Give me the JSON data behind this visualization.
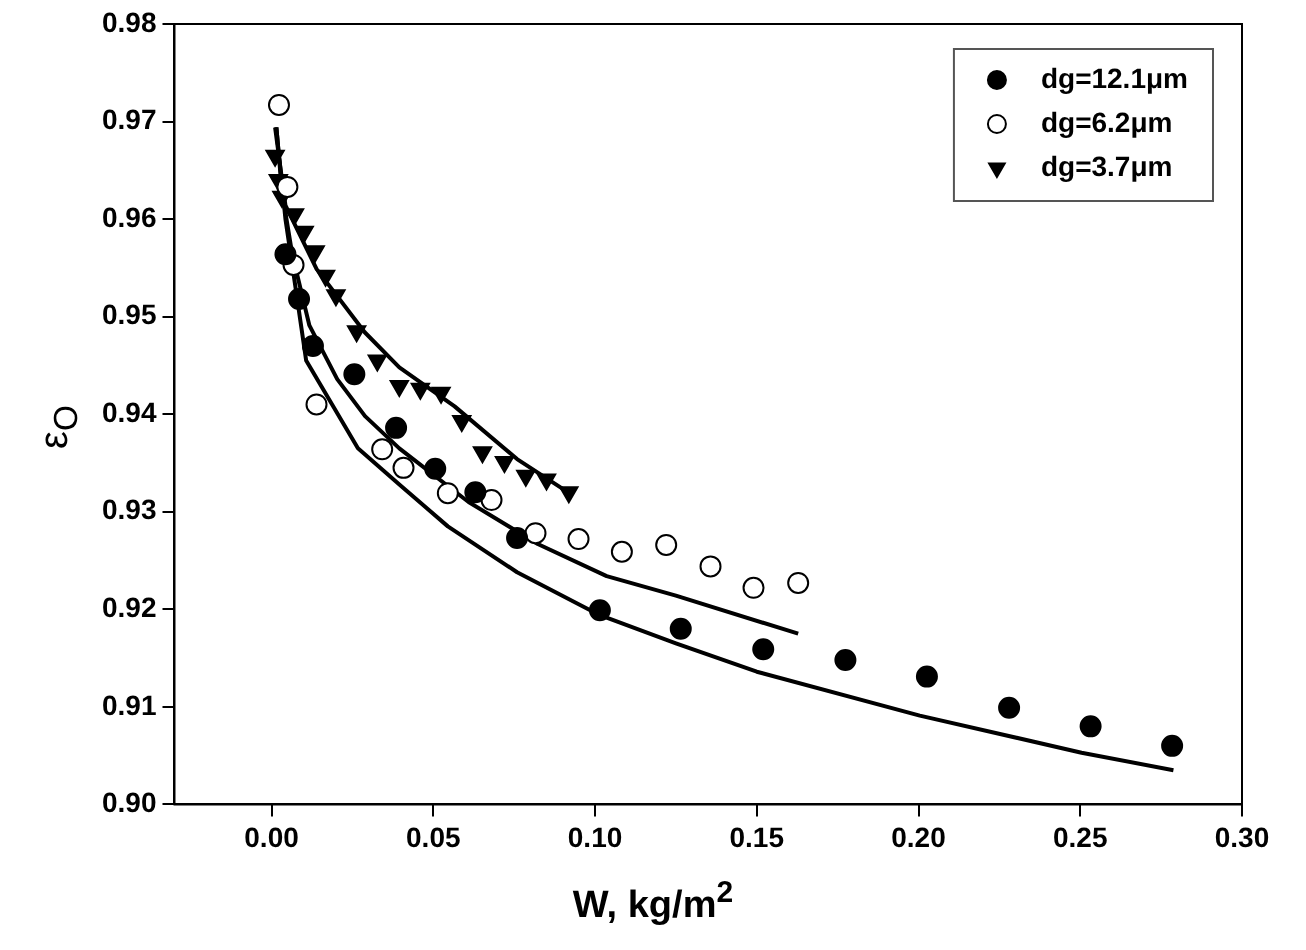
{
  "chart_data": {
    "type": "scatter",
    "xlabel": "W, kg/m$^{2}$",
    "ylabel": "ε$_{O}$",
    "xlim": [
      -0.03,
      0.3
    ],
    "ylim": [
      0.9,
      0.98
    ],
    "xticks": [
      {
        "value": 0,
        "label": "0.00"
      },
      {
        "value": 0.05,
        "label": "0.05"
      },
      {
        "value": 0.1,
        "label": "0.10"
      },
      {
        "value": 0.15,
        "label": "0.15"
      },
      {
        "value": 0.2,
        "label": "0.20"
      },
      {
        "value": 0.25,
        "label": "0.25"
      },
      {
        "value": 0.3,
        "label": "0.30"
      }
    ],
    "yticks": [
      {
        "value": 0.9,
        "label": "0.90"
      },
      {
        "value": 0.91,
        "label": "0.91"
      },
      {
        "value": 0.92,
        "label": "0.92"
      },
      {
        "value": 0.93,
        "label": "0.93"
      },
      {
        "value": 0.94,
        "label": "0.94"
      },
      {
        "value": 0.95,
        "label": "0.95"
      },
      {
        "value": 0.96,
        "label": "0.96"
      },
      {
        "value": 0.97,
        "label": "0.97"
      },
      {
        "value": 0.98,
        "label": "0.98"
      }
    ],
    "grid": false,
    "legend": "top right",
    "series": [
      {
        "name": "dg=12.1μm",
        "color": "#000000",
        "marker": "circle",
        "x": [
          0.0043,
          0.0085,
          0.0128,
          0.0256,
          0.0385,
          0.0506,
          0.063,
          0.0759,
          0.1015,
          0.1265,
          0.152,
          0.1774,
          0.2026,
          0.228,
          0.2532,
          0.2784
        ],
        "values": [
          0.9564,
          0.9518,
          0.947,
          0.9441,
          0.9386,
          0.9344,
          0.932,
          0.9273,
          0.9199,
          0.918,
          0.9159,
          0.9148,
          0.9131,
          0.9099,
          0.908,
          0.906
        ]
      },
      {
        "name": "dg=6.2μm",
        "color": "#000000",
        "marker": "circle_open",
        "x": [
          0.0023,
          0.0049,
          0.0068,
          0.0139,
          0.0342,
          0.0408,
          0.0545,
          0.068,
          0.0816,
          0.0949,
          0.1083,
          0.122,
          0.1357,
          0.149,
          0.1628
        ],
        "values": [
          0.9717,
          0.9633,
          0.9553,
          0.941,
          0.9364,
          0.9345,
          0.9319,
          0.9312,
          0.9278,
          0.9272,
          0.9259,
          0.9266,
          0.9244,
          0.9222,
          0.9227
        ]
      },
      {
        "name": "dg=3.7μm",
        "color": "#000000",
        "marker": "triangle_down",
        "x": [
          0.0011,
          0.0021,
          0.0032,
          0.0071,
          0.0101,
          0.0135,
          0.0167,
          0.0199,
          0.0263,
          0.0327,
          0.0395,
          0.046,
          0.0524,
          0.0588,
          0.0652,
          0.072,
          0.0786,
          0.085,
          0.0919
        ],
        "values": [
          0.9665,
          0.964,
          0.9623,
          0.9605,
          0.9587,
          0.9567,
          0.9542,
          0.9522,
          0.9485,
          0.9455,
          0.9429,
          0.9426,
          0.9422,
          0.9393,
          0.9361,
          0.9351,
          0.9337,
          0.9333,
          0.932
        ]
      },
      {
        "type": "line",
        "color": "#000000",
        "marker": "none",
        "x": [
          0.0015,
          0.0021,
          0.0043,
          0.0075,
          0.0107,
          0.0267,
          0.0395,
          0.0545,
          0.0759,
          0.1015,
          0.125,
          0.15,
          0.2004,
          0.2504,
          0.2788
        ],
        "values": [
          0.9694,
          0.9672,
          0.96,
          0.9528,
          0.9455,
          0.9365,
          0.9328,
          0.9285,
          0.9238,
          0.9194,
          0.9165,
          0.9136,
          0.9091,
          0.9053,
          0.9035
        ]
      },
      {
        "type": "line",
        "color": "#000000",
        "marker": "none",
        "x": [
          0.0015,
          0.0032,
          0.0064,
          0.0117,
          0.0203,
          0.0289,
          0.0395,
          0.0609,
          0.0823,
          0.1036,
          0.125,
          0.1628
        ],
        "values": [
          0.9694,
          0.9629,
          0.9564,
          0.9491,
          0.9436,
          0.9398,
          0.9365,
          0.931,
          0.9267,
          0.9234,
          0.9214,
          0.9175
        ]
      },
      {
        "type": "line",
        "color": "#000000",
        "marker": "none",
        "x": [
          0.0011,
          0.0043,
          0.0139,
          0.0288,
          0.0395,
          0.0566,
          0.0759,
          0.093
        ],
        "values": [
          0.9694,
          0.9614,
          0.9549,
          0.9484,
          0.9448,
          0.9408,
          0.9354,
          0.9317
        ]
      }
    ]
  }
}
